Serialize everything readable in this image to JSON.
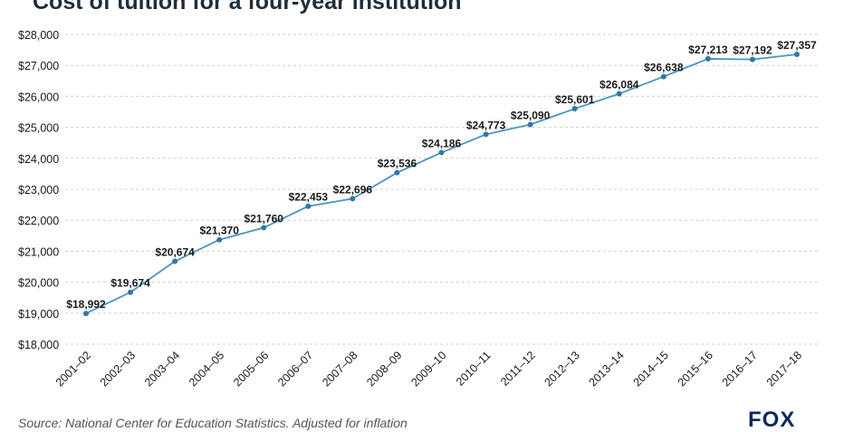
{
  "title": "Cost of tuition for a four-year institution",
  "source": "Source: National Center for Education Statistics. Adjusted for inflation",
  "logo_text": "FOX",
  "colors": {
    "line": "#4a96bf",
    "point": "#2f78a6",
    "grid": "#cfcfcf",
    "text": "#1a1a1a"
  },
  "chart_data": {
    "type": "line",
    "title": "Cost of tuition for a four-year institution",
    "xlabel": "",
    "ylabel": "",
    "categories": [
      "2001–02",
      "2002–03",
      "2003–04",
      "2004–05",
      "2005–06",
      "2006–07",
      "2007–08",
      "2008–09",
      "2009–10",
      "2010–11",
      "2011–12",
      "2012–13",
      "2013–14",
      "2014–15",
      "2015–16",
      "2016–17",
      "2017–18"
    ],
    "values": [
      18992,
      19674,
      20674,
      21370,
      21760,
      22453,
      22696,
      23536,
      24186,
      24773,
      25090,
      25601,
      26084,
      26638,
      27213,
      27192,
      27357
    ],
    "data_labels": [
      "$18,992",
      "$19,674",
      "$20,674",
      "$21,370",
      "$21,760",
      "$22,453",
      "$22,696",
      "$23,536",
      "$24,186",
      "$24,773",
      "$25,090",
      "$25,601",
      "$26,084",
      "$26,638",
      "$27,213",
      "$27,192",
      "$27,357"
    ],
    "ylim": [
      18000,
      28000
    ],
    "y_ticks": [
      18000,
      19000,
      20000,
      21000,
      22000,
      23000,
      24000,
      25000,
      26000,
      27000,
      28000
    ],
    "y_tick_labels": [
      "$18,000",
      "$19,000",
      "$20,000",
      "$21,000",
      "$22,000",
      "$23,000",
      "$24,000",
      "$25,000",
      "$26,000",
      "$27,000",
      "$28,000"
    ],
    "grid": true
  }
}
